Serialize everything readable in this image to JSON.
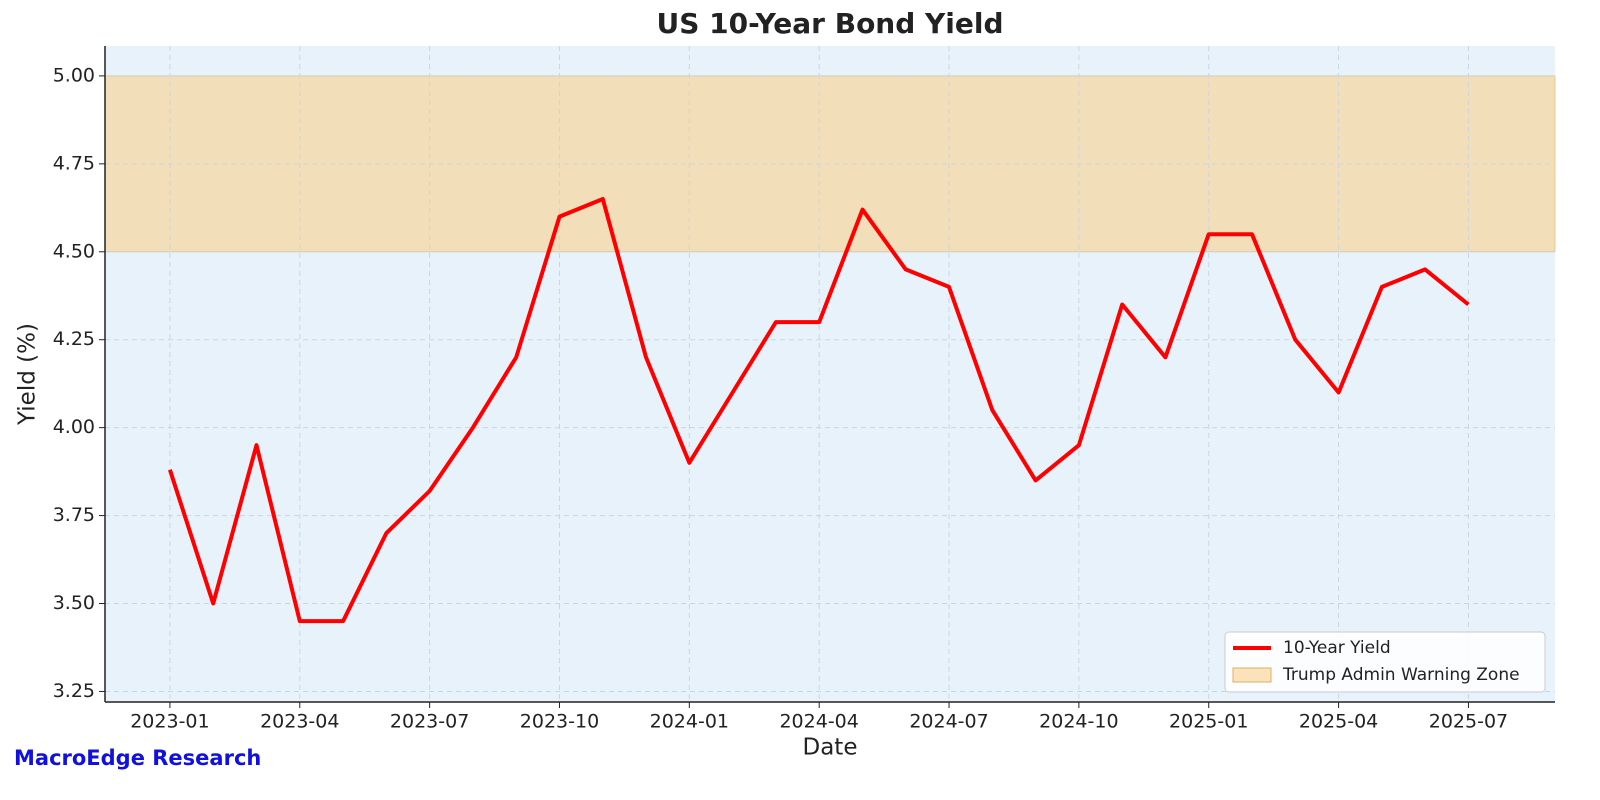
{
  "chart_data": {
    "type": "line",
    "title": "US 10-Year Bond Yield",
    "x_label": "Date",
    "y_label": "Yield (%)",
    "footer": "MacroEdge Research",
    "x": [
      "2023-01",
      "2023-02",
      "2023-03",
      "2023-04",
      "2023-05",
      "2023-06",
      "2023-07",
      "2023-08",
      "2023-09",
      "2023-10",
      "2023-11",
      "2023-12",
      "2024-01",
      "2024-02",
      "2024-03",
      "2024-04",
      "2024-05",
      "2024-06",
      "2024-07",
      "2024-08",
      "2024-09",
      "2024-10",
      "2024-11",
      "2024-12",
      "2025-01",
      "2025-02",
      "2025-03",
      "2025-04",
      "2025-05",
      "2025-06",
      "2025-07"
    ],
    "series": [
      {
        "name": "10-Year Yield",
        "color": "#ff0000",
        "values": [
          3.88,
          3.5,
          3.95,
          3.45,
          3.45,
          3.7,
          3.82,
          4.0,
          4.2,
          4.6,
          4.65,
          4.2,
          3.9,
          4.1,
          4.3,
          4.3,
          4.62,
          4.45,
          4.4,
          4.05,
          3.85,
          3.95,
          4.35,
          4.2,
          4.55,
          4.55,
          4.25,
          4.1,
          4.4,
          4.45,
          4.35
        ]
      }
    ],
    "bands": [
      {
        "label": "Trump Admin Warning Zone",
        "from": 4.5,
        "to": 5.0,
        "color": "#f9d08c"
      }
    ],
    "ylim": [
      3.22,
      5.085
    ],
    "yticks": [
      3.25,
      {
        "value": 3.5,
        "label": "3.50"
      },
      3.75,
      {
        "value": 4,
        "label": "4.00"
      },
      4.25,
      {
        "value": 4.5,
        "label": "4.50"
      },
      4.75,
      {
        "value": 5,
        "label": "5.00"
      }
    ],
    "xticks": [
      "2023-01",
      "2023-04",
      "2023-07",
      "2023-10",
      "2024-01",
      "2024-04",
      "2024-07",
      "2024-10",
      "2025-01",
      "2025-04",
      "2025-07"
    ],
    "grid": true,
    "legend": "lower right"
  }
}
